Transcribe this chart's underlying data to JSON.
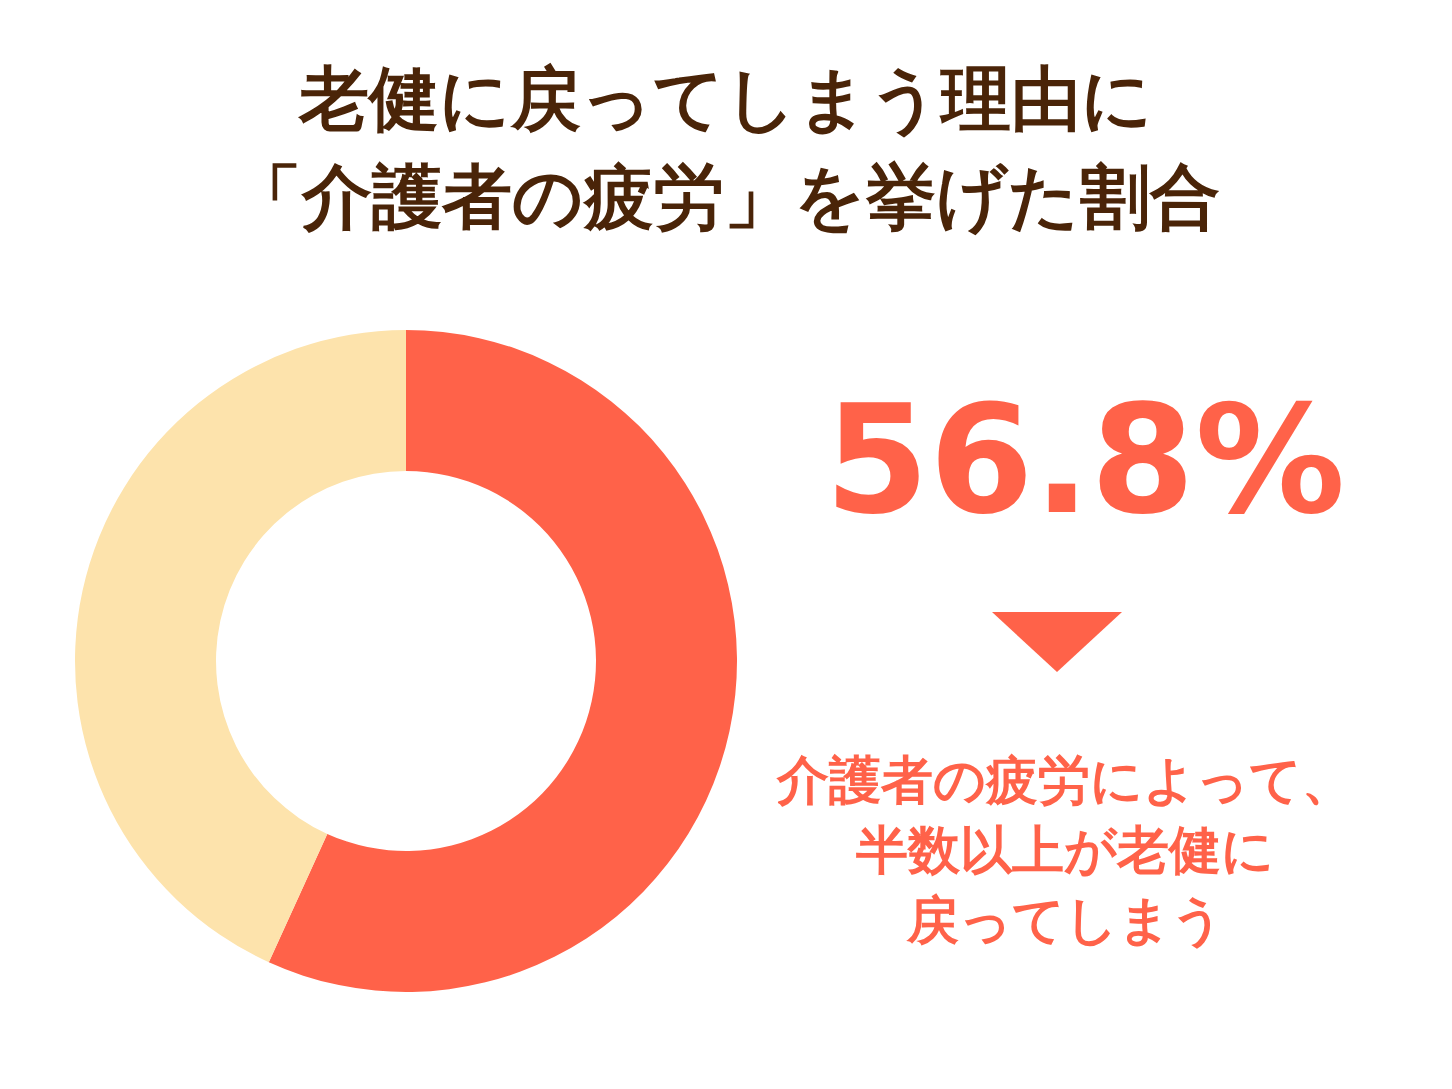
{
  "chart_data": {
    "type": "donut",
    "title": "老健に戻ってしまう理由に「介護者の疲労」を挙げた割合",
    "categories": [
      null,
      null
    ],
    "values": [
      56.8,
      43.2
    ],
    "colors": [
      "#ff6249",
      "#fde3ac"
    ],
    "annotations": [
      "56.8%",
      "介護者の疲労によって、",
      "半数以上が老健に",
      "戻ってしまう"
    ]
  }
}
